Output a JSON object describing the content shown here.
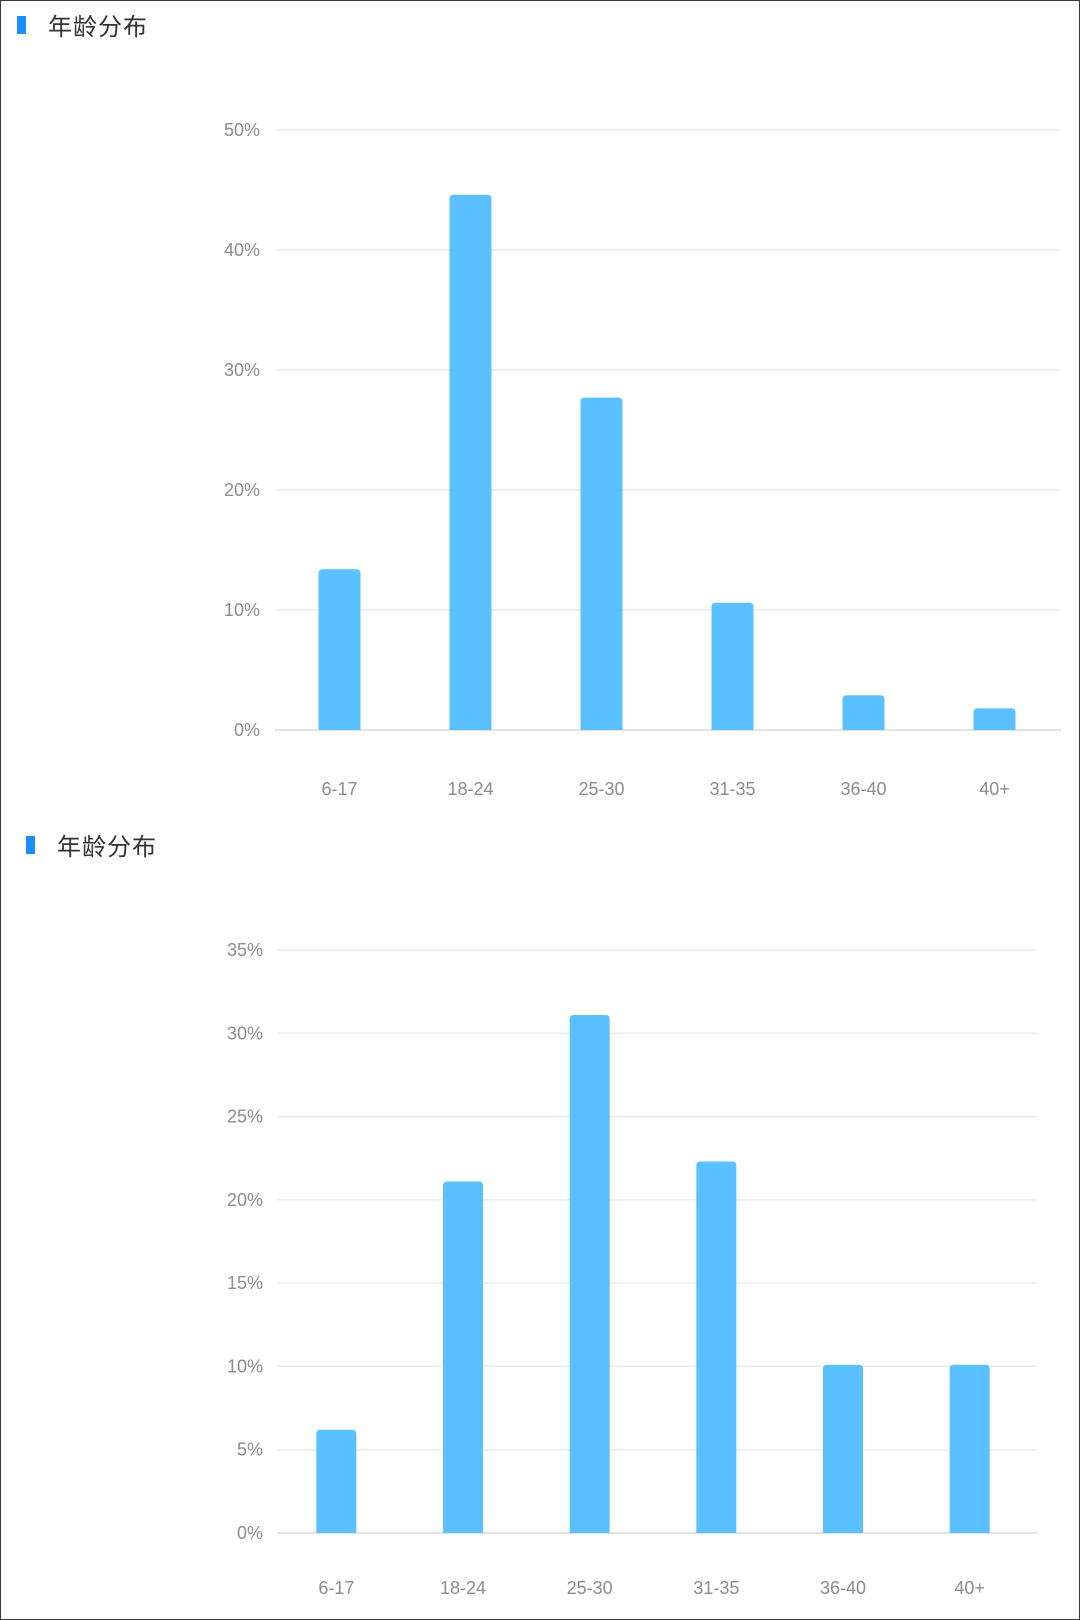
{
  "colors": {
    "accent": "#1890ff",
    "bar": "#5ac0ff",
    "grid": "#ececec",
    "tick_text": "#8c8c8c",
    "title_text": "#333333"
  },
  "panels": [
    {
      "title": "年龄分布",
      "chart_data": {
        "type": "bar",
        "title": "",
        "xlabel": "",
        "ylabel": "",
        "categories": [
          "6-17",
          "18-24",
          "25-30",
          "31-35",
          "36-40",
          "40+"
        ],
        "values": [
          13.4,
          44.6,
          27.7,
          10.6,
          2.9,
          1.8
        ],
        "ylim": [
          0,
          50
        ],
        "yticks": [
          0,
          10,
          20,
          30,
          40,
          50
        ],
        "ytick_labels": [
          "0%",
          "10%",
          "20%",
          "30%",
          "40%",
          "50%"
        ],
        "grid": true,
        "legend": "none"
      }
    },
    {
      "title": "年龄分布",
      "chart_data": {
        "type": "bar",
        "title": "",
        "xlabel": "",
        "ylabel": "",
        "categories": [
          "6-17",
          "18-24",
          "25-30",
          "31-35",
          "36-40",
          "40+"
        ],
        "values": [
          6.2,
          21.1,
          31.1,
          22.3,
          10.1,
          10.1
        ],
        "ylim": [
          0,
          35
        ],
        "yticks": [
          0,
          5,
          10,
          15,
          20,
          25,
          30,
          35
        ],
        "ytick_labels": [
          "0%",
          "5%",
          "10%",
          "15%",
          "20%",
          "25%",
          "30%",
          "35%"
        ],
        "grid": true,
        "legend": "none"
      }
    }
  ]
}
